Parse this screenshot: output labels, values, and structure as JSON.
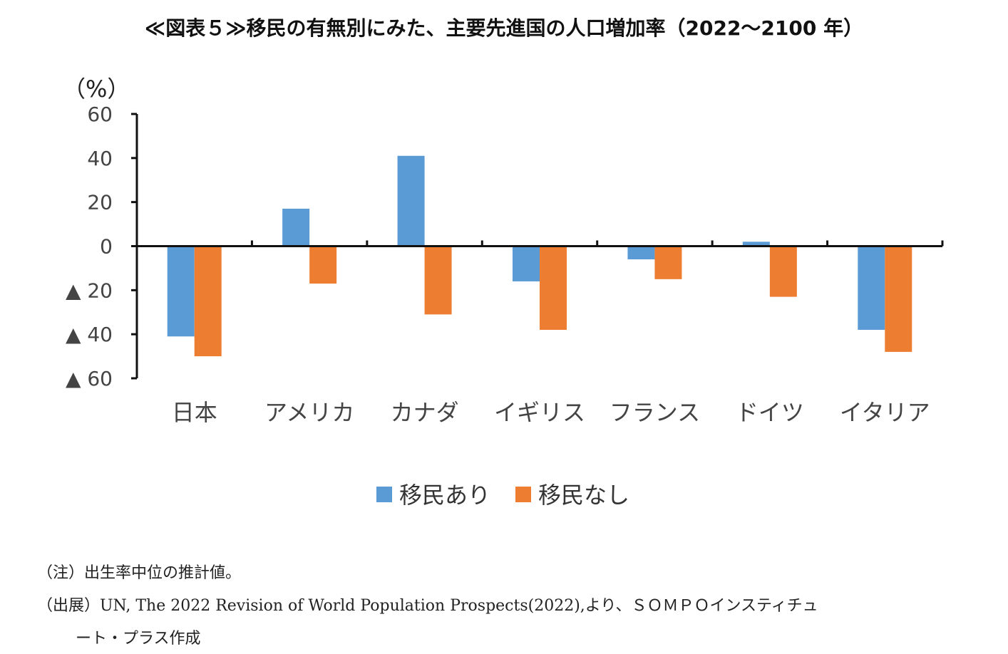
{
  "chart_data": {
    "type": "bar",
    "title": "≪図表５≫移民の有無別にみた、主要先進国の人口増加率（2022～2100 年）",
    "ylabel": "（%）",
    "xlabel": "",
    "categories": [
      "日本",
      "アメリカ",
      "カナダ",
      "イギリス",
      "フランス",
      "ドイツ",
      "イタリア"
    ],
    "series": [
      {
        "name": "移民あり",
        "color": "#5B9BD5",
        "values": [
          -41,
          17,
          41,
          -16,
          -6,
          2,
          -38
        ]
      },
      {
        "name": "移民なし",
        "color": "#ED7D31",
        "values": [
          -50,
          -17,
          -31,
          -38,
          -15,
          -23,
          -48
        ]
      }
    ],
    "ylim": [
      -60,
      60
    ],
    "yticks": [
      60,
      40,
      20,
      0,
      -20,
      -40,
      -60
    ],
    "ytick_labels": [
      "60",
      "40",
      "20",
      "0",
      "▲ 20",
      "▲ 40",
      "▲ 60"
    ],
    "legend_position": "bottom-center",
    "grid": false
  },
  "notes": {
    "note1": "（注）出生率中位の推計値。",
    "note2": "（出展）UN, The 2022 Revision of World Population Prospects(2022),より、ＳＯＭＰＯインスティチュ",
    "note3": "ート・プラス作成"
  }
}
